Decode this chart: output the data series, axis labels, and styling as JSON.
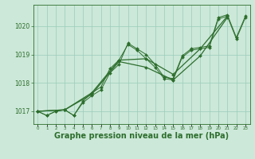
{
  "background_color": "#cce8d8",
  "plot_bg_color": "#cce8d8",
  "grid_color": "#99ccbb",
  "line_color": "#2d6e2d",
  "xlabel": "Graphe pression niveau de la mer (hPa)",
  "xlabel_fontsize": 7,
  "ylabel_ticks": [
    1017,
    1018,
    1019,
    1020
  ],
  "xlim": [
    -0.5,
    23.5
  ],
  "ylim": [
    1016.55,
    1020.75
  ],
  "series": [
    {
      "x": [
        0,
        1,
        2,
        3,
        4,
        5,
        6,
        7,
        8,
        9,
        10,
        11,
        12,
        13,
        14,
        15,
        16,
        17,
        18,
        19,
        20,
        21,
        22,
        23
      ],
      "y": [
        1017.0,
        1016.85,
        1017.0,
        1017.05,
        1016.85,
        1017.35,
        1017.65,
        1017.85,
        1018.5,
        1018.8,
        1019.35,
        1019.15,
        1018.85,
        1018.55,
        1018.15,
        1018.1,
        1018.9,
        1019.15,
        1019.2,
        1019.25,
        1020.25,
        1020.35,
        1019.55,
        1020.3
      ]
    },
    {
      "x": [
        0,
        1,
        2,
        3,
        4,
        5,
        6,
        7,
        8,
        9,
        10,
        11,
        12,
        13,
        14,
        15,
        16,
        17,
        18,
        19,
        20,
        21,
        22,
        23
      ],
      "y": [
        1017.0,
        1016.85,
        1017.0,
        1017.05,
        1016.85,
        1017.3,
        1017.55,
        1017.75,
        1018.35,
        1018.65,
        1019.4,
        1019.2,
        1019.0,
        1018.65,
        1018.2,
        1018.15,
        1018.95,
        1019.2,
        1019.25,
        1019.3,
        1020.3,
        1020.4,
        1019.6,
        1020.35
      ]
    },
    {
      "x": [
        0,
        3,
        6,
        9,
        12,
        15,
        18,
        21
      ],
      "y": [
        1017.0,
        1017.05,
        1017.65,
        1018.8,
        1018.85,
        1018.3,
        1019.2,
        1020.35
      ]
    },
    {
      "x": [
        0,
        3,
        6,
        9,
        12,
        15,
        18,
        21
      ],
      "y": [
        1017.0,
        1017.05,
        1017.6,
        1018.75,
        1018.55,
        1018.1,
        1018.95,
        1020.3
      ]
    }
  ]
}
